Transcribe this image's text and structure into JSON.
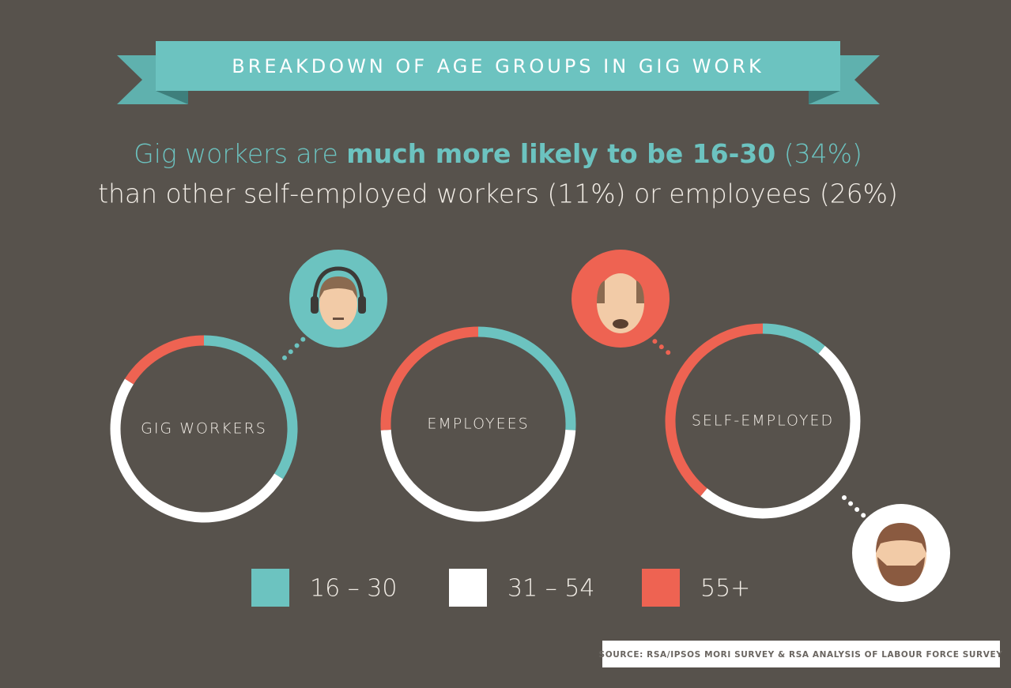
{
  "header": {
    "title": "BREAKDOWN OF AGE GROUPS IN GIG WORK",
    "subtitle": [
      "Gig workers are ",
      "much more likely to be 16-30",
      " (34%)",
      "than other self-employed workers (11%) or employees (26%)"
    ]
  },
  "chart_data": {
    "type": "donut",
    "categories": [
      "16 – 30",
      "31 – 54",
      "55+"
    ],
    "colors": [
      "#6cc3c0",
      "#ffffff",
      "#ee6352"
    ],
    "series": [
      {
        "name": "GIG WORKERS",
        "values": [
          34,
          50,
          16
        ]
      },
      {
        "name": "EMPLOYEES",
        "values": [
          26,
          48,
          26
        ]
      },
      {
        "name": "SELF-EMPLOYED",
        "values": [
          11,
          50,
          39
        ]
      }
    ]
  },
  "source": "SOURCE: RSA/IPSOS MORI SURVEY & RSA ANALYSIS OF LABOUR FORCE SURVEY"
}
